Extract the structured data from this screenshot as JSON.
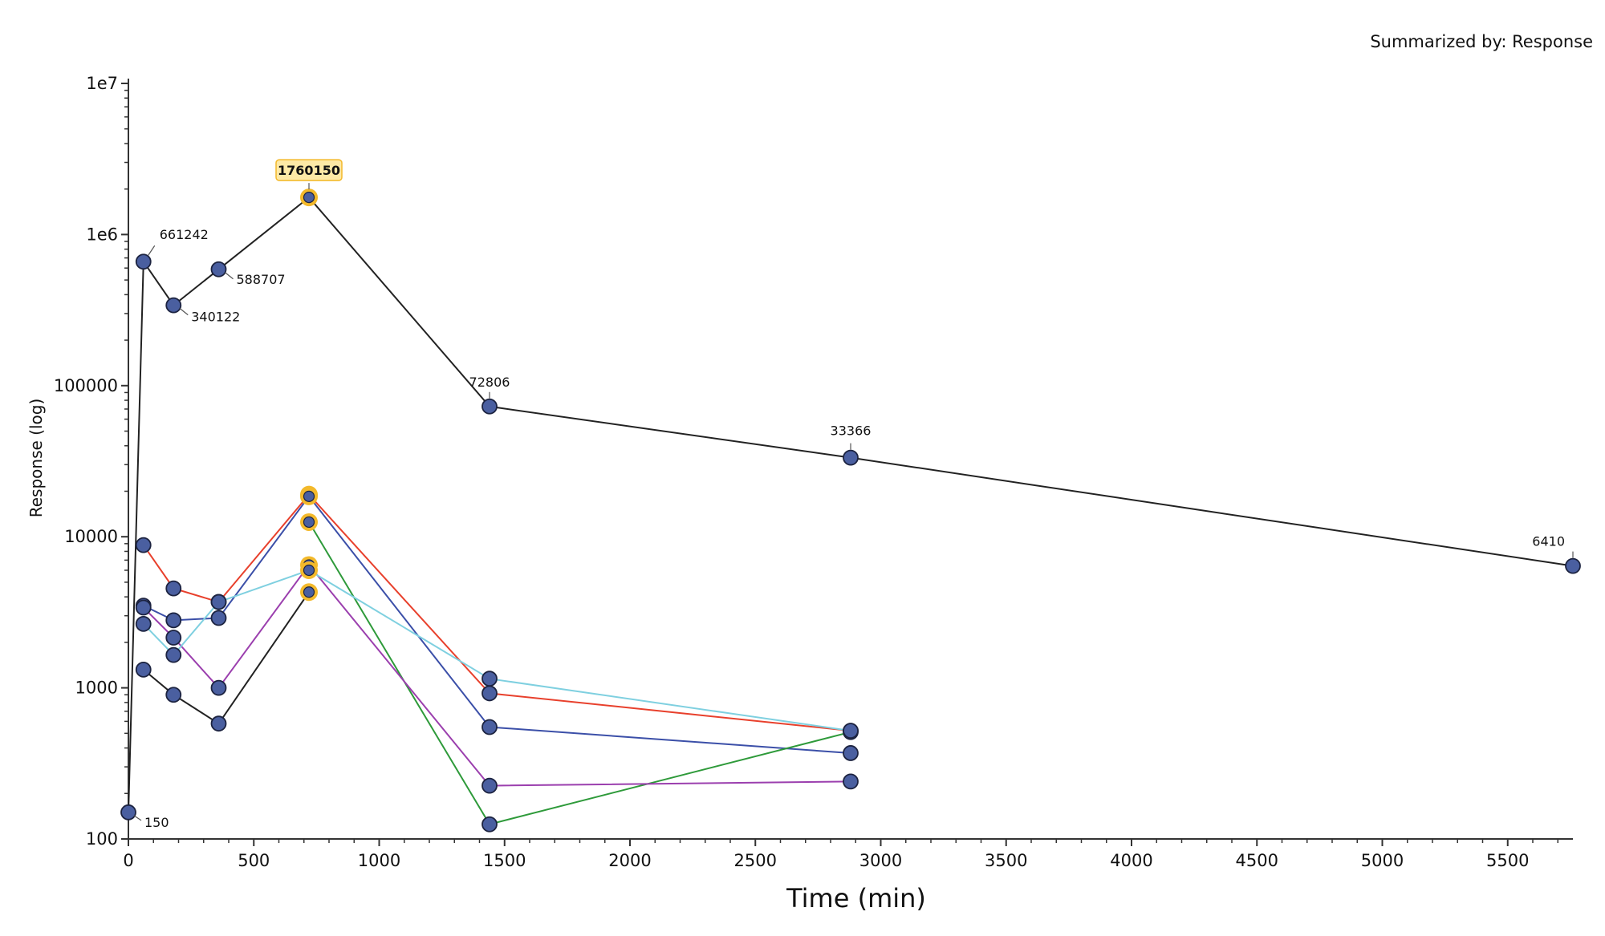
{
  "summary_label": "Summarized by: Response",
  "colors": {
    "marker_fill": "#4a5fa0",
    "marker_stroke": "#1c2340",
    "highlight": "#f3b92b",
    "highlight_label_bg": "#fde9a6",
    "axis": "#333333"
  },
  "chart_data": {
    "type": "line",
    "xlabel": "Time (min)",
    "ylabel": "Response (log)",
    "xlim": [
      0,
      5760
    ],
    "ylim": [
      100,
      10000000
    ],
    "yscale": "log",
    "x_ticks": [
      0,
      500,
      1000,
      1500,
      2000,
      2500,
      3000,
      3500,
      4000,
      4500,
      5000,
      5500
    ],
    "x_tick_labels": [
      "0",
      "500",
      "1000",
      "1500",
      "2000",
      "2500",
      "3000",
      "3500",
      "4000",
      "4500",
      "5000",
      "5500"
    ],
    "y_ticks": [
      100,
      1000,
      10000,
      100000,
      1000000,
      10000000
    ],
    "y_tick_labels": [
      "100",
      "1000",
      "10000",
      "100000",
      "1e6",
      "1e7"
    ],
    "grid": false,
    "highlight_x": 720,
    "series": [
      {
        "color": "#222222",
        "points": [
          [
            0,
            150
          ],
          [
            60,
            661242
          ],
          [
            180,
            340122
          ],
          [
            360,
            588707
          ],
          [
            720,
            1760150
          ],
          [
            1440,
            72806
          ],
          [
            2880,
            33366
          ],
          [
            5760,
            6410
          ]
        ],
        "labels": [
          "150",
          "661242",
          "340122",
          "588707",
          "1760150",
          "72806",
          "33366",
          "6410"
        ]
      },
      {
        "color": "#e8402c",
        "points": [
          [
            60,
            8800
          ],
          [
            180,
            4550
          ],
          [
            360,
            3700
          ],
          [
            720,
            19000
          ],
          [
            1440,
            920
          ],
          [
            2880,
            520
          ]
        ]
      },
      {
        "color": "#3b4fa8",
        "points": [
          [
            60,
            3500
          ],
          [
            180,
            2800
          ],
          [
            360,
            2900
          ],
          [
            720,
            18500
          ],
          [
            1440,
            550
          ],
          [
            2880,
            370
          ]
        ]
      },
      {
        "color": "#2e9a3a",
        "points": [
          [
            720,
            12500
          ],
          [
            1440,
            125
          ],
          [
            2880,
            510
          ]
        ]
      },
      {
        "color": "#9b3fae",
        "points": [
          [
            60,
            3400
          ],
          [
            180,
            2150
          ],
          [
            360,
            1000
          ],
          [
            720,
            6500
          ],
          [
            1440,
            225
          ],
          [
            2880,
            240
          ]
        ]
      },
      {
        "color": "#7fd0e0",
        "points": [
          [
            60,
            2650
          ],
          [
            180,
            1650
          ],
          [
            360,
            3700
          ],
          [
            720,
            6000
          ],
          [
            1440,
            1150
          ],
          [
            2880,
            520
          ]
        ]
      },
      {
        "color": "#222222",
        "points": [
          [
            60,
            1320
          ],
          [
            180,
            900
          ],
          [
            360,
            580
          ],
          [
            720,
            4300
          ]
        ]
      }
    ]
  }
}
